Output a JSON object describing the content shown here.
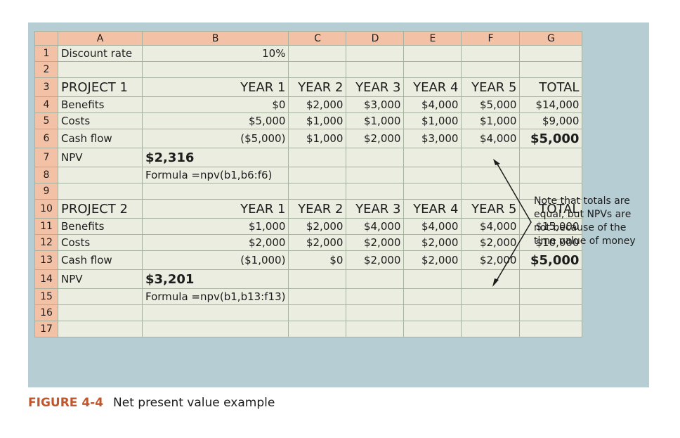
{
  "columns": [
    "A",
    "B",
    "C",
    "D",
    "E",
    "F",
    "G"
  ],
  "rows": [
    {
      "n": "1",
      "cells": [
        "Discount rate",
        "10%",
        "",
        "",
        "",
        "",
        ""
      ]
    },
    {
      "n": "2",
      "cells": [
        "",
        "",
        "",
        "",
        "",
        "",
        ""
      ]
    },
    {
      "n": "3",
      "cells": [
        "PROJECT 1",
        "YEAR 1",
        "YEAR 2",
        "YEAR 3",
        "YEAR 4",
        "YEAR 5",
        "TOTAL"
      ]
    },
    {
      "n": "4",
      "cells": [
        "Benefits",
        "$0",
        "$2,000",
        "$3,000",
        "$4,000",
        "$5,000",
        "$14,000"
      ]
    },
    {
      "n": "5",
      "cells": [
        "Costs",
        "$5,000",
        "$1,000",
        "$1,000",
        "$1,000",
        "$1,000",
        "$9,000"
      ]
    },
    {
      "n": "6",
      "cells": [
        "Cash flow",
        "($5,000)",
        "$1,000",
        "$2,000",
        "$3,000",
        "$4,000",
        "$5,000"
      ]
    },
    {
      "n": "7",
      "cells": [
        "NPV",
        "$2,316",
        "",
        "",
        "",
        "",
        ""
      ]
    },
    {
      "n": "8",
      "cells": [
        "",
        "Formula =npv(b1,b6:f6)",
        "",
        "",
        "",
        "",
        ""
      ]
    },
    {
      "n": "9",
      "cells": [
        "",
        "",
        "",
        "",
        "",
        "",
        ""
      ]
    },
    {
      "n": "10",
      "cells": [
        "PROJECT 2",
        "YEAR 1",
        "YEAR 2",
        "YEAR 3",
        "YEAR 4",
        "YEAR 5",
        "TOTAL"
      ]
    },
    {
      "n": "11",
      "cells": [
        "Benefits",
        "$1,000",
        "$2,000",
        "$4,000",
        "$4,000",
        "$4,000",
        "$15,000"
      ]
    },
    {
      "n": "12",
      "cells": [
        "Costs",
        "$2,000",
        "$2,000",
        "$2,000",
        "$2,000",
        "$2,000",
        "$10,000"
      ]
    },
    {
      "n": "13",
      "cells": [
        "Cash flow",
        "($1,000)",
        "$0",
        "$2,000",
        "$2,000",
        "$2,000",
        "$5,000"
      ]
    },
    {
      "n": "14",
      "cells": [
        "NPV",
        "$3,201",
        "",
        "",
        "",
        "",
        ""
      ]
    },
    {
      "n": "15",
      "cells": [
        "",
        "Formula =npv(b1,b13:f13)",
        "",
        "",
        "",
        "",
        ""
      ]
    },
    {
      "n": "16",
      "cells": [
        "",
        "",
        "",
        "",
        "",
        "",
        ""
      ]
    },
    {
      "n": "17",
      "cells": [
        "",
        "",
        "",
        "",
        "",
        "",
        ""
      ]
    }
  ],
  "note": "Note that totals are equal, but NPVs are not because of the time value of money",
  "caption": {
    "label": "FIGURE 4-4",
    "text": "Net present value example"
  }
}
